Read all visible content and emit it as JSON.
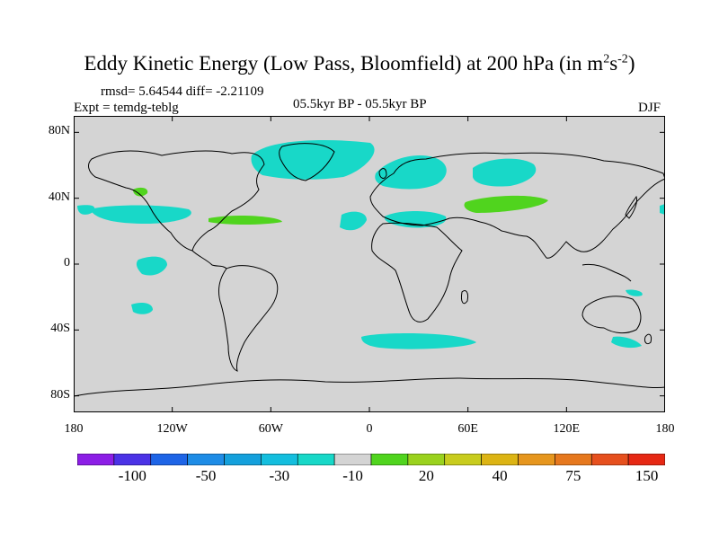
{
  "title": {
    "main": "Eddy Kinetic Energy (Low Pass, Bloomfield) at 200 hPa (in m",
    "sup1": "2",
    "mid": "s",
    "sup2": "-2",
    "end": ")"
  },
  "stats": {
    "rmsd": "rmsd= 5.64544 diff= -2.21109",
    "expt": "Expt = temdg-teblg",
    "period": "05.5kyr BP - 05.5kyr BP",
    "season": "DJF"
  },
  "map": {
    "land_color": "#d4d4d4",
    "lat_ticks": [
      "80N",
      "40N",
      "0",
      "40S",
      "80S"
    ],
    "lon_ticks": [
      "180",
      "120W",
      "60W",
      "0",
      "60E",
      "120E",
      "180"
    ],
    "lat_values": [
      80,
      40,
      0,
      -40,
      -80
    ],
    "lon_values": [
      -180,
      -120,
      -60,
      0,
      60,
      120,
      180
    ]
  },
  "legend": {
    "colors": [
      "#8c1ee6",
      "#4b32e6",
      "#1e64e6",
      "#1e8ce6",
      "#14a0dc",
      "#14bede",
      "#18d8c8",
      "#d4d4d4",
      "#50d41e",
      "#9ad21e",
      "#c8cc1e",
      "#dcb414",
      "#e6961e",
      "#e6781e",
      "#e6501e",
      "#e62814"
    ],
    "labels": [
      "-100",
      "-50",
      "-30",
      "-10",
      "20",
      "40",
      "75",
      "150"
    ],
    "label_positions": [
      2,
      4,
      6,
      8,
      10,
      12,
      14,
      16
    ]
  }
}
